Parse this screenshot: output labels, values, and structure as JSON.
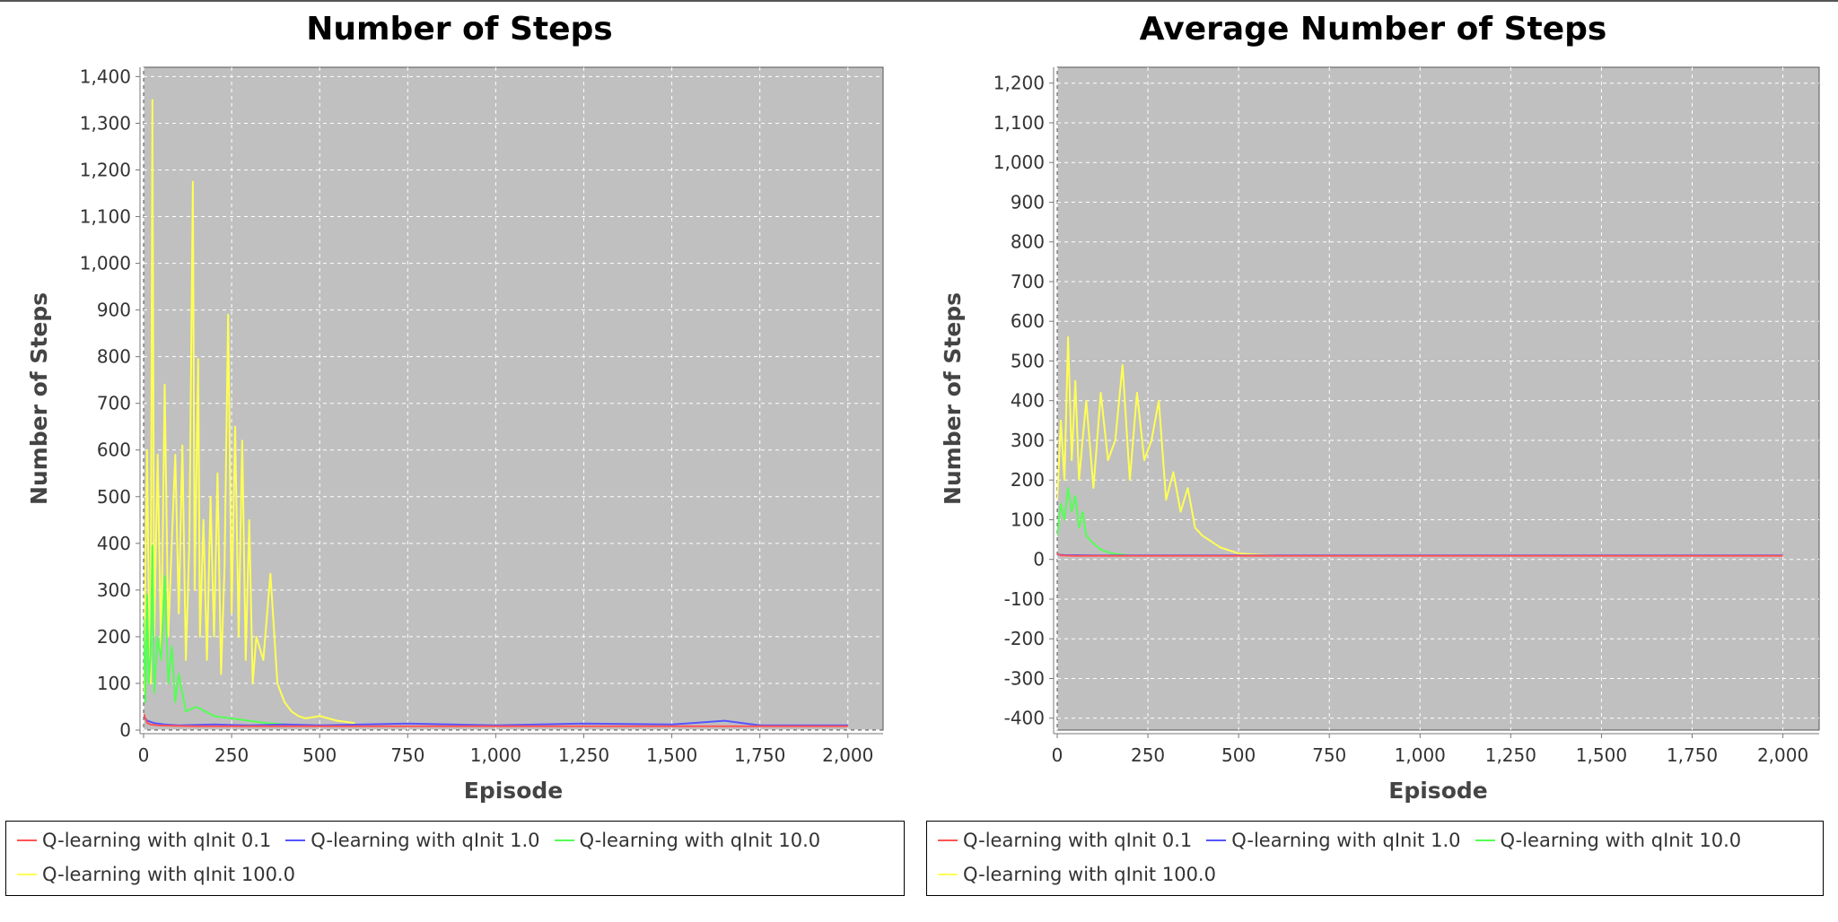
{
  "chart_data": [
    {
      "type": "line",
      "title": "Number of Steps",
      "xlabel": "Episode",
      "ylabel": "Number of Steps",
      "xlim": [
        0,
        2100
      ],
      "ylim": [
        0,
        1420
      ],
      "xticks": [
        0,
        250,
        500,
        750,
        1000,
        1250,
        1500,
        1750,
        2000
      ],
      "xtick_labels": [
        "0",
        "250",
        "500",
        "750",
        "1,000",
        "1,250",
        "1,500",
        "1,750",
        "2,000"
      ],
      "yticks": [
        0,
        100,
        200,
        300,
        400,
        500,
        600,
        700,
        800,
        900,
        1000,
        1100,
        1200,
        1300,
        1400
      ],
      "ytick_labels": [
        "0",
        "100",
        "200",
        "300",
        "400",
        "500",
        "600",
        "700",
        "800",
        "900",
        "1,000",
        "1,100",
        "1,200",
        "1,300",
        "1,400"
      ],
      "grid": true,
      "legend": "bottom",
      "series": [
        {
          "name": "Q-learning with qInit 0.1",
          "color": "#ff5555",
          "x": [
            0,
            5,
            10,
            20,
            40,
            80,
            150,
            300,
            500,
            1000,
            1500,
            2000
          ],
          "y": [
            35,
            25,
            15,
            12,
            10,
            9,
            8,
            8,
            8,
            8,
            8,
            8
          ]
        },
        {
          "name": "Q-learning with qInit 1.0",
          "color": "#5555ff",
          "x": [
            0,
            10,
            30,
            60,
            100,
            200,
            300,
            400,
            500,
            750,
            1000,
            1250,
            1500,
            1650,
            1750,
            2000
          ],
          "y": [
            30,
            20,
            15,
            12,
            10,
            12,
            10,
            12,
            10,
            14,
            10,
            14,
            12,
            20,
            10,
            10
          ]
        },
        {
          "name": "Q-learning with qInit 10.0",
          "color": "#55ff55",
          "x": [
            0,
            5,
            10,
            15,
            20,
            25,
            30,
            40,
            50,
            60,
            70,
            80,
            90,
            100,
            120,
            150,
            200,
            250,
            300,
            350,
            400,
            450,
            500
          ],
          "y": [
            240,
            60,
            290,
            100,
            160,
            395,
            80,
            200,
            150,
            330,
            100,
            180,
            60,
            120,
            40,
            50,
            30,
            25,
            20,
            15,
            12,
            10,
            9
          ]
        },
        {
          "name": "Q-learning with qInit 100.0",
          "color": "#ffff55",
          "x": [
            0,
            10,
            15,
            20,
            25,
            30,
            40,
            50,
            60,
            70,
            80,
            90,
            100,
            110,
            120,
            130,
            140,
            145,
            155,
            160,
            170,
            180,
            190,
            200,
            210,
            220,
            230,
            240,
            250,
            260,
            270,
            280,
            290,
            300,
            310,
            320,
            340,
            360,
            380,
            400,
            420,
            440,
            460,
            500,
            550,
            600
          ],
          "y": [
            80,
            600,
            250,
            100,
            1350,
            200,
            590,
            150,
            740,
            200,
            400,
            590,
            250,
            610,
            150,
            400,
            1175,
            300,
            795,
            200,
            450,
            150,
            500,
            200,
            550,
            120,
            350,
            890,
            250,
            650,
            200,
            620,
            150,
            450,
            100,
            200,
            150,
            335,
            100,
            60,
            40,
            30,
            25,
            30,
            20,
            15
          ]
        }
      ]
    },
    {
      "type": "line",
      "title": "Average Number of Steps",
      "xlabel": "Episode",
      "ylabel": "Number of Steps",
      "xlim": [
        0,
        2100
      ],
      "ylim": [
        -430,
        1240
      ],
      "xticks": [
        0,
        250,
        500,
        750,
        1000,
        1250,
        1500,
        1750,
        2000
      ],
      "xtick_labels": [
        "0",
        "250",
        "500",
        "750",
        "1,000",
        "1,250",
        "1,500",
        "1,750",
        "2,000"
      ],
      "yticks": [
        -400,
        -300,
        -200,
        -100,
        0,
        100,
        200,
        300,
        400,
        500,
        600,
        700,
        800,
        900,
        1000,
        1100,
        1200
      ],
      "ytick_labels": [
        "-400",
        "-300",
        "-200",
        "-100",
        "0",
        "100",
        "200",
        "300",
        "400",
        "500",
        "600",
        "700",
        "800",
        "900",
        "1,000",
        "1,100",
        "1,200"
      ],
      "grid": true,
      "legend": "bottom",
      "series": [
        {
          "name": "Q-learning with qInit 0.1",
          "color": "#ff5555",
          "x": [
            0,
            10,
            50,
            100,
            500,
            1000,
            1500,
            2000
          ],
          "y": [
            15,
            10,
            9,
            9,
            9,
            9,
            9,
            9
          ]
        },
        {
          "name": "Q-learning with qInit 1.0",
          "color": "#5555ff",
          "x": [
            0,
            20,
            100,
            500,
            1000,
            1500,
            2000
          ],
          "y": [
            12,
            11,
            10,
            10,
            10,
            10,
            10
          ]
        },
        {
          "name": "Q-learning with qInit 10.0",
          "color": "#55ff55",
          "x": [
            0,
            10,
            20,
            30,
            40,
            50,
            60,
            70,
            80,
            100,
            120,
            150,
            200
          ],
          "y": [
            60,
            140,
            100,
            180,
            120,
            160,
            80,
            120,
            60,
            40,
            25,
            15,
            10
          ]
        },
        {
          "name": "Q-learning with qInit 100.0",
          "color": "#ffff55",
          "x": [
            0,
            10,
            20,
            30,
            40,
            50,
            60,
            80,
            100,
            120,
            140,
            160,
            180,
            200,
            220,
            240,
            260,
            280,
            300,
            320,
            340,
            360,
            380,
            400,
            450,
            500,
            550,
            600
          ],
          "y": [
            150,
            350,
            200,
            560,
            250,
            450,
            200,
            400,
            180,
            420,
            250,
            300,
            490,
            200,
            420,
            250,
            300,
            400,
            150,
            220,
            120,
            180,
            80,
            60,
            30,
            15,
            12,
            10
          ]
        }
      ]
    }
  ]
}
